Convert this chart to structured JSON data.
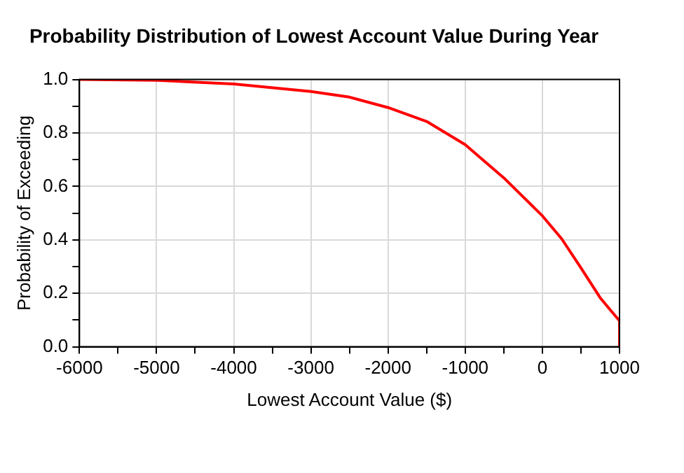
{
  "chart_data": {
    "type": "line",
    "title": "Probability Distribution of Lowest Account Value During Year",
    "xlabel": "Lowest Account Value ($)",
    "ylabel": "Probability of Exceeding",
    "x": [
      -6000,
      -5000,
      -4000,
      -3000,
      -2500,
      -2000,
      -1500,
      -1000,
      -500,
      0,
      250,
      500,
      750,
      900,
      1000,
      1000
    ],
    "series": [
      {
        "color": "#ff0000",
        "values": [
          1.0,
          0.997,
          0.983,
          0.955,
          0.934,
          0.895,
          0.843,
          0.756,
          0.632,
          0.49,
          0.404,
          0.295,
          0.183,
          0.131,
          0.097,
          0
        ]
      }
    ],
    "xlim": [
      -6000,
      1000
    ],
    "xticks": [
      -6000,
      {
        "value": -5500,
        "label": null
      },
      -5000,
      {
        "value": -4500,
        "label": null
      },
      -4000,
      {
        "value": -3500,
        "label": null
      },
      -3000,
      {
        "value": -2500,
        "label": null
      },
      -2000,
      {
        "value": -1500,
        "label": null
      },
      -1000,
      {
        "value": -500,
        "label": null
      },
      0,
      {
        "value": 500,
        "label": null
      },
      1000
    ],
    "ylim": [
      0,
      1
    ],
    "yticks": [
      {
        "value": 0,
        "label": "0.0"
      },
      {
        "value": 0.1,
        "label": null
      },
      {
        "value": 0.2,
        "label": "0.2"
      },
      {
        "value": 0.3,
        "label": null
      },
      {
        "value": 0.4,
        "label": "0.4"
      },
      {
        "value": 0.5,
        "label": null
      },
      {
        "value": 0.6,
        "label": "0.6"
      },
      {
        "value": 0.7,
        "label": null
      },
      {
        "value": 0.8,
        "label": "0.8"
      },
      {
        "value": 0.9,
        "label": null
      },
      {
        "value": 1,
        "label": "1.0"
      }
    ],
    "grid": true,
    "marker": "none",
    "line_style": "solid",
    "legend": false
  }
}
